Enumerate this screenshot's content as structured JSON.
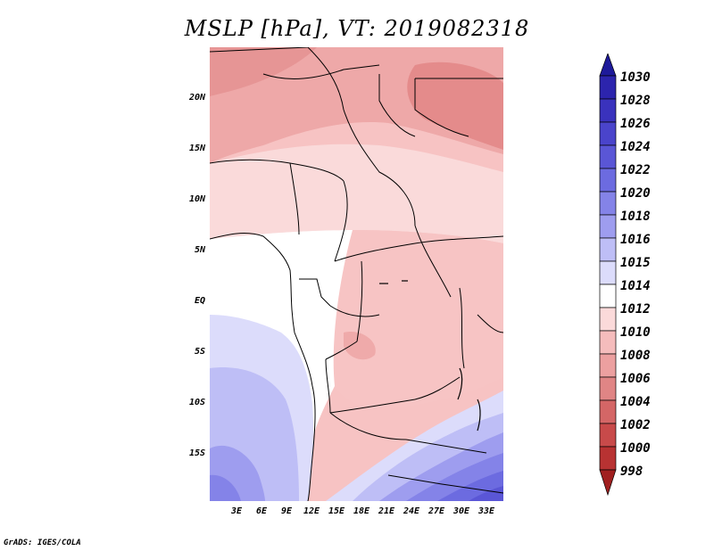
{
  "title": "MSLP [hPa], VT: 2019082318",
  "credit": "GrADS: IGES/COLA",
  "axes": {
    "lat_labels": [
      "20N",
      "15N",
      "10N",
      "5N",
      "EQ",
      "5S",
      "10S",
      "15S"
    ],
    "lon_labels": [
      "3E",
      "6E",
      "9E",
      "12E",
      "15E",
      "18E",
      "21E",
      "24E",
      "27E",
      "30E",
      "33E"
    ]
  },
  "legend": {
    "levels": [
      "1030",
      "1028",
      "1026",
      "1024",
      "1022",
      "1020",
      "1018",
      "1016",
      "1015",
      "1014",
      "1012",
      "1010",
      "1008",
      "1006",
      "1004",
      "1002",
      "1000",
      "998"
    ],
    "colors": [
      "#1e1a9a",
      "#2c24ad",
      "#3a32bd",
      "#4a44cb",
      "#5a56d6",
      "#6c6be0",
      "#8483e8",
      "#9e9def",
      "#bebef6",
      "#dcdcfb",
      "#ffffff",
      "#fbdada",
      "#f5bcbc",
      "#eca0a0",
      "#e08585",
      "#d46666",
      "#c84a4a",
      "#b83232",
      "#a01f1f"
    ]
  }
}
